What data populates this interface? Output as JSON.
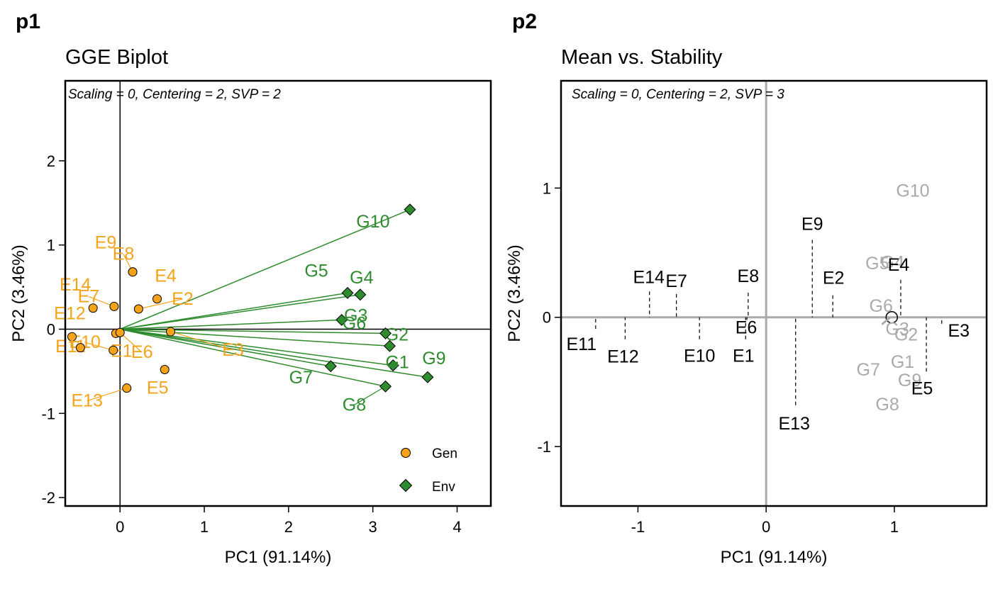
{
  "panels": [
    {
      "tag": "p1",
      "title": "GGE Biplot",
      "subtitle": "Scaling = 0, Centering = 2, SVP = 2"
    },
    {
      "tag": "p2",
      "title": "Mean vs. Stability",
      "subtitle": "Scaling = 0, Centering = 2, SVP = 3"
    }
  ],
  "colors": {
    "gen": "#F5A31A",
    "env": "#2E8B2E",
    "grey": "#AAAAAA",
    "black": "#000000"
  },
  "chart_data": [
    {
      "type": "scatter",
      "title": "GGE Biplot",
      "subtitle": "Scaling = 0, Centering = 2, SVP = 2",
      "xlabel": "PC1 (91.14%)",
      "ylabel": "PC2 (3.46%)",
      "xlim": [
        -0.65,
        4.4
      ],
      "ylim": [
        -2.1,
        2.95
      ],
      "xticks": [
        0,
        1,
        2,
        3,
        4
      ],
      "yticks": [
        -2,
        -1,
        0,
        1,
        2
      ],
      "legend": {
        "position": "bottom-right",
        "entries": [
          {
            "name": "Gen",
            "marker": "circle",
            "color": "#F5A31A"
          },
          {
            "name": "Env",
            "marker": "diamond",
            "color": "#2E8B2E"
          }
        ]
      },
      "series": [
        {
          "name": "Gen",
          "marker": "circle",
          "color": "#F5A31A",
          "points": [
            {
              "label": "E1",
              "x": -0.05,
              "y": -0.05
            },
            {
              "label": "E2",
              "x": 0.22,
              "y": 0.24
            },
            {
              "label": "E3",
              "x": 0.6,
              "y": -0.03
            },
            {
              "label": "E4",
              "x": 0.44,
              "y": 0.36
            },
            {
              "label": "E5",
              "x": 0.53,
              "y": -0.48
            },
            {
              "label": "E6",
              "x": 0.0,
              "y": -0.04
            },
            {
              "label": "E7",
              "x": -0.07,
              "y": 0.27
            },
            {
              "label": "E8",
              "x": 0.15,
              "y": 0.68
            },
            {
              "label": "E9",
              "x": 0.15,
              "y": 0.68
            },
            {
              "label": "E10",
              "x": -0.08,
              "y": -0.25
            },
            {
              "label": "E11",
              "x": -0.57,
              "y": -0.09
            },
            {
              "label": "E12",
              "x": -0.47,
              "y": -0.22
            },
            {
              "label": "E13",
              "x": 0.08,
              "y": -0.7
            },
            {
              "label": "E14",
              "x": -0.32,
              "y": 0.25
            }
          ]
        },
        {
          "name": "Env",
          "marker": "diamond",
          "color": "#2E8B2E",
          "points": [
            {
              "label": "G1",
              "x": 3.24,
              "y": -0.43
            },
            {
              "label": "G2",
              "x": 3.2,
              "y": -0.2
            },
            {
              "label": "G3",
              "x": 2.63,
              "y": 0.11
            },
            {
              "label": "G4",
              "x": 2.85,
              "y": 0.41
            },
            {
              "label": "G5",
              "x": 2.7,
              "y": 0.43
            },
            {
              "label": "G6",
              "x": 3.15,
              "y": -0.05
            },
            {
              "label": "G7",
              "x": 2.5,
              "y": -0.44
            },
            {
              "label": "G8",
              "x": 3.15,
              "y": -0.68
            },
            {
              "label": "G9",
              "x": 3.65,
              "y": -0.57
            },
            {
              "label": "G10",
              "x": 3.44,
              "y": 1.42
            }
          ]
        }
      ]
    },
    {
      "type": "scatter",
      "title": "Mean vs. Stability",
      "subtitle": "Scaling = 0, Centering = 2, SVP = 3",
      "xlabel": "PC1 (91.14%)",
      "ylabel": "PC2 (3.46%)",
      "xlim": [
        -1.6,
        1.72
      ],
      "ylim": [
        -1.46,
        1.83
      ],
      "xticks": [
        -1,
        0,
        1
      ],
      "yticks": [
        -1,
        0,
        1
      ],
      "average_environment": {
        "x": 0.98,
        "y": 0.0
      },
      "series": [
        {
          "name": "Gen",
          "color": "#000000",
          "points": [
            {
              "label": "E1",
              "x": -0.16,
              "y": -0.17
            },
            {
              "label": "E2",
              "x": 0.52,
              "y": 0.17
            },
            {
              "label": "E3",
              "x": 1.37,
              "y": -0.05
            },
            {
              "label": "E4",
              "x": 1.05,
              "y": 0.29
            },
            {
              "label": "E5",
              "x": 1.25,
              "y": -0.42
            },
            {
              "label": "E6",
              "x": -0.15,
              "y": -0.02
            },
            {
              "label": "E7",
              "x": -0.7,
              "y": 0.18
            },
            {
              "label": "E8",
              "x": -0.14,
              "y": 0.19
            },
            {
              "label": "E9",
              "x": 0.36,
              "y": 0.6
            },
            {
              "label": "E10",
              "x": -0.52,
              "y": -0.17
            },
            {
              "label": "E11",
              "x": -1.33,
              "y": -0.09
            },
            {
              "label": "E12",
              "x": -1.1,
              "y": -0.17
            },
            {
              "label": "E13",
              "x": 0.23,
              "y": -0.68
            },
            {
              "label": "E14",
              "x": -0.91,
              "y": 0.2
            }
          ]
        },
        {
          "name": "Env",
          "color": "#AAAAAA",
          "points": [
            {
              "label": "G1",
              "x": 1.02,
              "y": -0.33
            },
            {
              "label": "G2",
              "x": 1.02,
              "y": -0.17
            },
            {
              "label": "G3",
              "x": 0.99,
              "y": -0.06
            },
            {
              "label": "G4",
              "x": 0.93,
              "y": 0.28
            },
            {
              "label": "G5",
              "x": 0.9,
              "y": 0.29
            },
            {
              "label": "G6",
              "x": 0.93,
              "y": 0.07
            },
            {
              "label": "G7",
              "x": 0.88,
              "y": -0.33
            },
            {
              "label": "G8",
              "x": 0.99,
              "y": -0.49
            },
            {
              "label": "G9",
              "x": 1.12,
              "y": -0.43
            },
            {
              "label": "G10",
              "x": 1.1,
              "y": 1.02
            }
          ]
        }
      ]
    }
  ]
}
